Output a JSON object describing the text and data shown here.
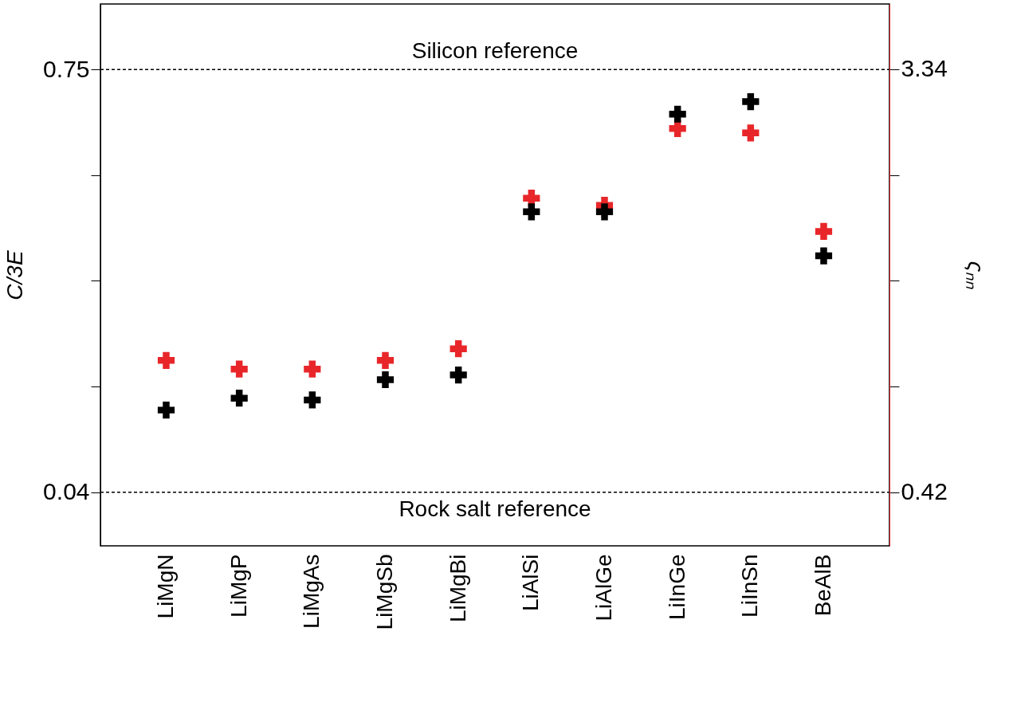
{
  "chart_data": {
    "type": "scatter",
    "ylabel": "C/3E",
    "y2label": "ςₙₙ",
    "categories": [
      "LiMgN",
      "LiMgP",
      "LiMgAs",
      "LiMgSb",
      "LiMgBi",
      "LiAlSi",
      "LiAlGe",
      "LiInGe",
      "LiInSn",
      "BeAlB"
    ],
    "series": [
      {
        "color": "#000000",
        "values": [
          0.178,
          0.198,
          0.195,
          0.229,
          0.237,
          0.511,
          0.511,
          0.675,
          0.696,
          0.437
        ]
      },
      {
        "color": "#e8262a",
        "axis": "y2",
        "values": [
          1.33,
          1.27,
          1.27,
          1.33,
          1.41,
          2.45,
          2.4,
          2.93,
          2.9,
          2.22
        ]
      }
    ],
    "ylim": [
      -0.05,
      0.86
    ],
    "yticks": [
      0.04,
      {
        "value": 0.2175,
        "label": null
      },
      {
        "value": 0.395,
        "label": null
      },
      {
        "value": 0.5725,
        "label": null
      },
      0.75
    ],
    "y2lim": [
      0.05,
      3.79
    ],
    "y2ticks": [
      0.42,
      {
        "value": 1.15,
        "label": null
      },
      {
        "value": 1.88,
        "label": null
      },
      {
        "value": 2.61,
        "label": null
      },
      3.34
    ],
    "ref_lines": [
      {
        "axis": "y",
        "value": 0.75,
        "label": "Silicon reference",
        "color": "#000000",
        "line_style": "dashed"
      },
      {
        "axis": "y",
        "value": 0.04,
        "label": "Rock salt reference",
        "color": "#000000",
        "line_style": "dashed"
      }
    ],
    "marker": "cross",
    "grid": false
  }
}
